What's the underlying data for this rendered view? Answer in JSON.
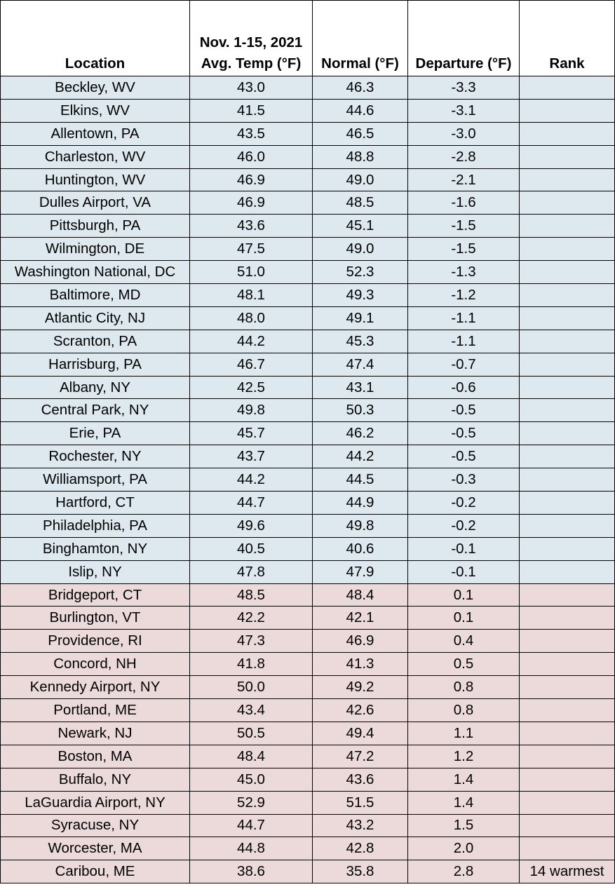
{
  "headers": {
    "location": "Location",
    "avg_temp_line1": "Nov. 1-15, 2021",
    "avg_temp_line2": "Avg. Temp (°F)",
    "normal": "Normal (°F)",
    "departure": "Departure (°F)",
    "rank": "Rank"
  },
  "colors": {
    "below_normal_row": "#dde9ee",
    "above_normal_row": "#ecdadb"
  },
  "rows": [
    {
      "location": "Beckley, WV",
      "avg": "43.0",
      "normal": "46.3",
      "departure": "-3.3",
      "rank": ""
    },
    {
      "location": "Elkins, WV",
      "avg": "41.5",
      "normal": "44.6",
      "departure": "-3.1",
      "rank": ""
    },
    {
      "location": "Allentown, PA",
      "avg": "43.5",
      "normal": "46.5",
      "departure": "-3.0",
      "rank": ""
    },
    {
      "location": "Charleston, WV",
      "avg": "46.0",
      "normal": "48.8",
      "departure": "-2.8",
      "rank": ""
    },
    {
      "location": "Huntington, WV",
      "avg": "46.9",
      "normal": "49.0",
      "departure": "-2.1",
      "rank": ""
    },
    {
      "location": "Dulles Airport, VA",
      "avg": "46.9",
      "normal": "48.5",
      "departure": "-1.6",
      "rank": ""
    },
    {
      "location": "Pittsburgh, PA",
      "avg": "43.6",
      "normal": "45.1",
      "departure": "-1.5",
      "rank": ""
    },
    {
      "location": "Wilmington, DE",
      "avg": "47.5",
      "normal": "49.0",
      "departure": "-1.5",
      "rank": ""
    },
    {
      "location": "Washington National, DC",
      "avg": "51.0",
      "normal": "52.3",
      "departure": "-1.3",
      "rank": ""
    },
    {
      "location": "Baltimore, MD",
      "avg": "48.1",
      "normal": "49.3",
      "departure": "-1.2",
      "rank": ""
    },
    {
      "location": "Atlantic City, NJ",
      "avg": "48.0",
      "normal": "49.1",
      "departure": "-1.1",
      "rank": ""
    },
    {
      "location": "Scranton, PA",
      "avg": "44.2",
      "normal": "45.3",
      "departure": "-1.1",
      "rank": ""
    },
    {
      "location": "Harrisburg, PA",
      "avg": "46.7",
      "normal": "47.4",
      "departure": "-0.7",
      "rank": ""
    },
    {
      "location": "Albany, NY",
      "avg": "42.5",
      "normal": "43.1",
      "departure": "-0.6",
      "rank": ""
    },
    {
      "location": "Central Park, NY",
      "avg": "49.8",
      "normal": "50.3",
      "departure": "-0.5",
      "rank": ""
    },
    {
      "location": "Erie, PA",
      "avg": "45.7",
      "normal": "46.2",
      "departure": "-0.5",
      "rank": ""
    },
    {
      "location": "Rochester, NY",
      "avg": "43.7",
      "normal": "44.2",
      "departure": "-0.5",
      "rank": ""
    },
    {
      "location": "Williamsport, PA",
      "avg": "44.2",
      "normal": "44.5",
      "departure": "-0.3",
      "rank": ""
    },
    {
      "location": "Hartford, CT",
      "avg": "44.7",
      "normal": "44.9",
      "departure": "-0.2",
      "rank": ""
    },
    {
      "location": "Philadelphia, PA",
      "avg": "49.6",
      "normal": "49.8",
      "departure": "-0.2",
      "rank": ""
    },
    {
      "location": "Binghamton, NY",
      "avg": "40.5",
      "normal": "40.6",
      "departure": "-0.1",
      "rank": ""
    },
    {
      "location": "Islip, NY",
      "avg": "47.8",
      "normal": "47.9",
      "departure": "-0.1",
      "rank": ""
    },
    {
      "location": "Bridgeport, CT",
      "avg": "48.5",
      "normal": "48.4",
      "departure": "0.1",
      "rank": ""
    },
    {
      "location": "Burlington, VT",
      "avg": "42.2",
      "normal": "42.1",
      "departure": "0.1",
      "rank": ""
    },
    {
      "location": "Providence, RI",
      "avg": "47.3",
      "normal": "46.9",
      "departure": "0.4",
      "rank": ""
    },
    {
      "location": "Concord, NH",
      "avg": "41.8",
      "normal": "41.3",
      "departure": "0.5",
      "rank": ""
    },
    {
      "location": "Kennedy Airport, NY",
      "avg": "50.0",
      "normal": "49.2",
      "departure": "0.8",
      "rank": ""
    },
    {
      "location": "Portland, ME",
      "avg": "43.4",
      "normal": "42.6",
      "departure": "0.8",
      "rank": ""
    },
    {
      "location": "Newark, NJ",
      "avg": "50.5",
      "normal": "49.4",
      "departure": "1.1",
      "rank": ""
    },
    {
      "location": "Boston, MA",
      "avg": "48.4",
      "normal": "47.2",
      "departure": "1.2",
      "rank": ""
    },
    {
      "location": "Buffalo, NY",
      "avg": "45.0",
      "normal": "43.6",
      "departure": "1.4",
      "rank": ""
    },
    {
      "location": "LaGuardia Airport, NY",
      "avg": "52.9",
      "normal": "51.5",
      "departure": "1.4",
      "rank": ""
    },
    {
      "location": "Syracuse, NY",
      "avg": "44.7",
      "normal": "43.2",
      "departure": "1.5",
      "rank": ""
    },
    {
      "location": "Worcester, MA",
      "avg": "44.8",
      "normal": "42.8",
      "departure": "2.0",
      "rank": ""
    },
    {
      "location": "Caribou, ME",
      "avg": "38.6",
      "normal": "35.8",
      "departure": "2.8",
      "rank": "14 warmest"
    }
  ]
}
